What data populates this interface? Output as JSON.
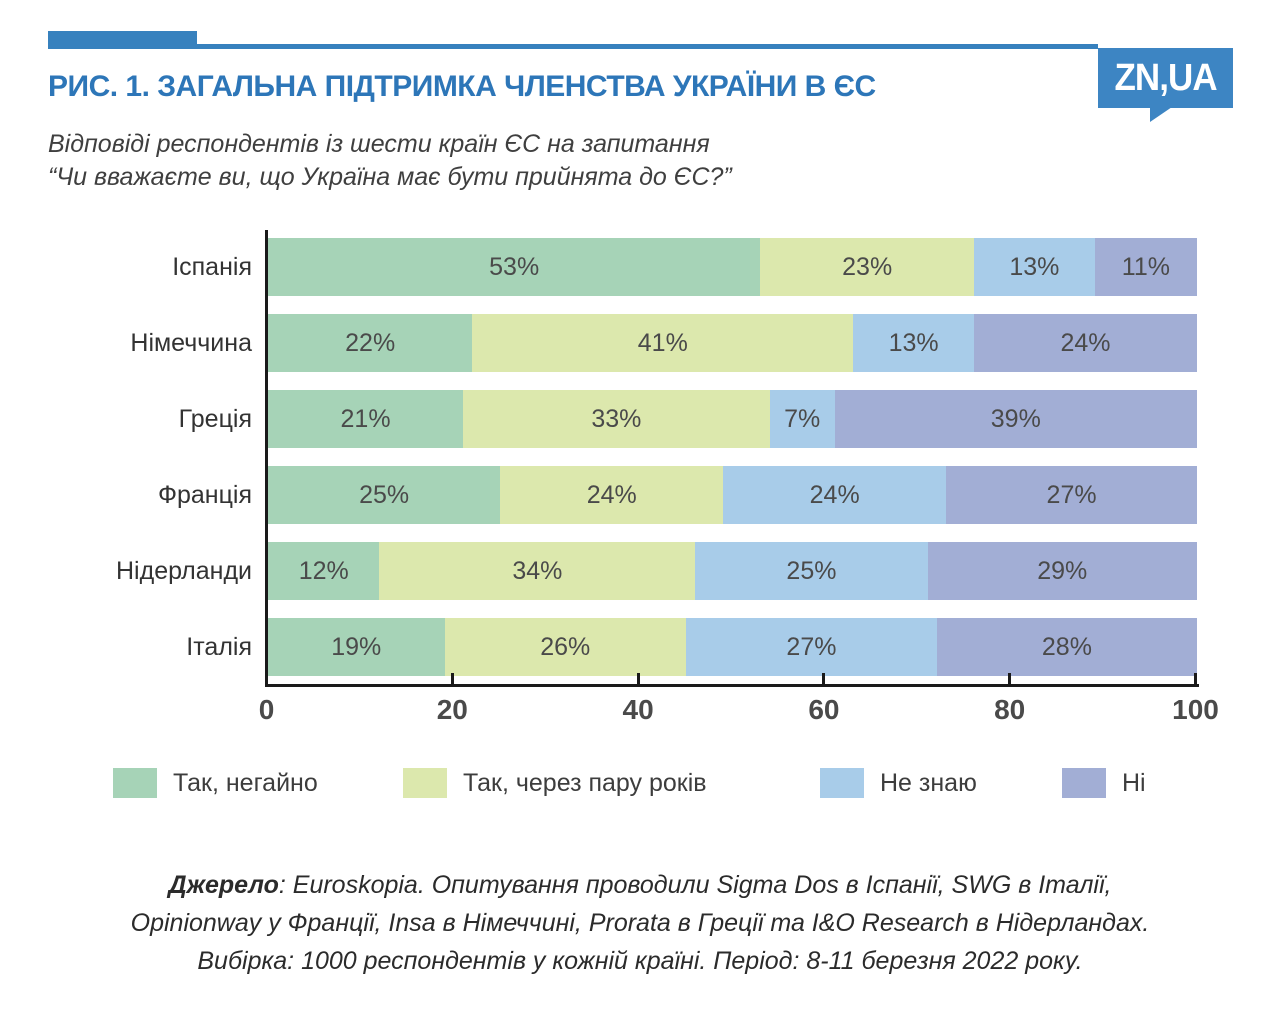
{
  "accent_color": "#3781be",
  "header": {
    "title": "РИС. 1. ЗАГАЛЬНА ПІДТРИМКА ЧЛЕНСТВА УКРАЇНИ В ЄС",
    "subtitle_line1": "Відповіді респондентів із шести країн ЄС на запитання",
    "subtitle_line2": "“Чи вважаєте ви, що Україна має бути прийнята до ЄС?”",
    "logo_text": "ZN,UA"
  },
  "chart_data": {
    "type": "bar",
    "orientation": "horizontal",
    "stacked": true,
    "unit": "%",
    "categories": [
      "Іспанія",
      "Німеччина",
      "Греція",
      "Франція",
      "Нідерланди",
      "Італія"
    ],
    "series": [
      {
        "name": "Так, негайно",
        "color": "#a6d3b7",
        "values": [
          53,
          22,
          21,
          25,
          12,
          19
        ]
      },
      {
        "name": "Так, через пару років",
        "color": "#dce8ad",
        "values": [
          23,
          41,
          33,
          24,
          34,
          26
        ]
      },
      {
        "name": "Не знаю",
        "color": "#a8cce9",
        "values": [
          13,
          13,
          7,
          24,
          25,
          27
        ]
      },
      {
        "name": "Ні",
        "color": "#a2aed5",
        "values": [
          11,
          24,
          39,
          27,
          29,
          28
        ]
      }
    ],
    "x_ticks": [
      0,
      20,
      40,
      60,
      80,
      100
    ],
    "xlim": [
      0,
      100
    ],
    "grid": false,
    "legend_position": "bottom"
  },
  "footer": {
    "source_label": "Джерело",
    "source_rest": ": Euroskopia. Опитування проводили Sigma Dos в Іспанії, SWG в Італії,",
    "source_line2": "Opinionway у Франції, Insa в Німеччині, Prorata в Греції та I&O Research в Нідерландах.",
    "source_line3": "Вибірка: 1000 респондентів у кожній країні. Період: 8-11 березня 2022 року."
  }
}
